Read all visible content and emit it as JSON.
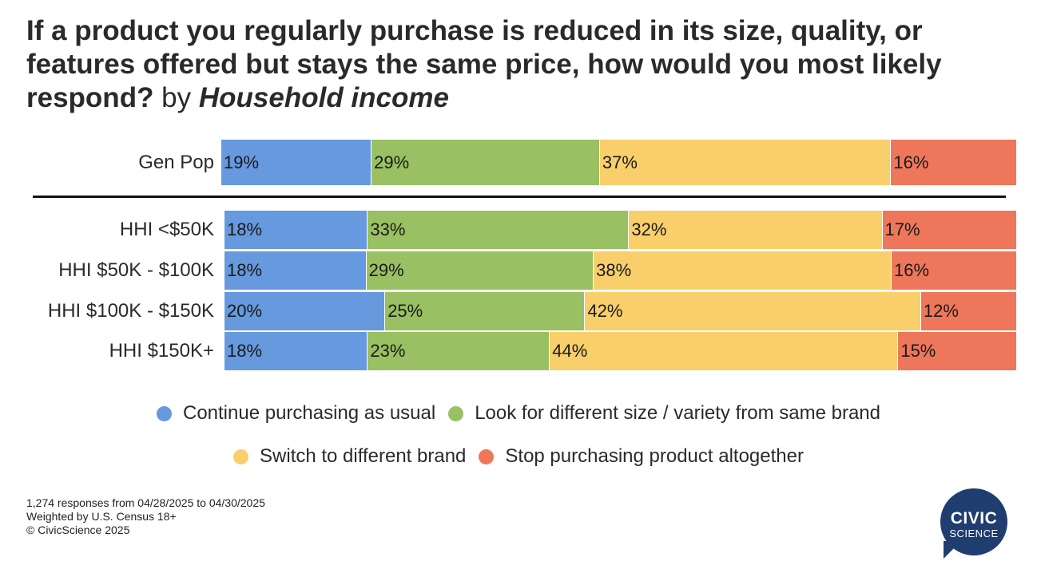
{
  "title": {
    "main": "If a product you regularly purchase is reduced in its size, quality, or features offered but stays the same price, how would you most likely respond?",
    "by": " by ",
    "group": "Household income"
  },
  "chart_data": {
    "type": "bar",
    "orientation": "horizontal-stacked-100",
    "categories": [
      "Gen Pop",
      "HHI <$50K",
      "HHI $50K - $100K",
      "HHI $100K - $150K",
      "HHI $150K+"
    ],
    "series": [
      {
        "name": "Continue purchasing as usual",
        "color": "#6699dd",
        "values": [
          19,
          18,
          18,
          20,
          18
        ],
        "labels": [
          "19%",
          "18%",
          "18%",
          "20%",
          "18%"
        ]
      },
      {
        "name": "Look for different size / variety from same brand",
        "color": "#99c062",
        "values": [
          29,
          33,
          29,
          25,
          23
        ],
        "labels": [
          "29%",
          "33%",
          "29%",
          "25%",
          "23%"
        ]
      },
      {
        "name": "Switch to different brand",
        "color": "#f8cf6a",
        "values": [
          37,
          32,
          38,
          42,
          44
        ],
        "labels": [
          "37%",
          "32%",
          "38%",
          "42%",
          "44%"
        ]
      },
      {
        "name": "Stop purchasing product altogether",
        "color": "#ee775b",
        "values": [
          16,
          17,
          16,
          12,
          15
        ],
        "labels": [
          "16%",
          "17%",
          "16%",
          "12%",
          "15%"
        ]
      }
    ],
    "legend_position": "bottom"
  },
  "footer": {
    "responses": "1,274 responses from 04/28/2025 to 04/30/2025",
    "weighting": "Weighted by U.S. Census 18+",
    "copyright": "© CivicScience 2025"
  },
  "logo": {
    "line1": "CIVIC",
    "line2": "SCIENCE",
    "color": "#1f3d6e"
  }
}
